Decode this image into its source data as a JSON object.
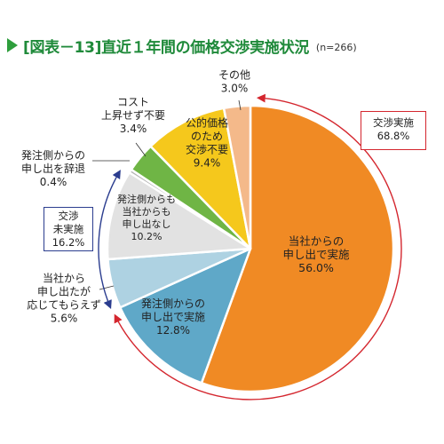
{
  "header": {
    "title": "[図表－13]直近１年間の価格交渉実施状況",
    "sample": "(n=266)"
  },
  "colors": {
    "accent_title": "#1f8a3a",
    "arrow_red": "#d4262e",
    "arrow_blue": "#2b3d8f"
  },
  "chart_data": {
    "type": "pie",
    "title": "[図表－13]直近１年間の価格交渉実施状況",
    "n": "(n=266)",
    "slices": [
      {
        "name": "当社からの申し出で実施",
        "lines": [
          "当社からの",
          "申し出で実施"
        ],
        "value": 56.0,
        "value_label": "56.0%",
        "color": "#f08a24"
      },
      {
        "name": "発注側からの申し出で実施",
        "lines": [
          "発注側からの",
          "申し出で実施"
        ],
        "value": 12.8,
        "value_label": "12.8%",
        "color": "#5fa8c8"
      },
      {
        "name": "当社から申し出たが応じてもらえず",
        "lines": [
          "当社から",
          "申し出たが",
          "応じてもらえず"
        ],
        "value": 5.6,
        "value_label": "5.6%",
        "color": "#aed2e2"
      },
      {
        "name": "発注側からも当社からも申し出なし",
        "lines": [
          "発注側からも",
          "当社からも",
          "申し出なし"
        ],
        "value": 10.2,
        "value_label": "10.2%",
        "color": "#e2e2e2"
      },
      {
        "name": "発注側からの申し出を辞退",
        "lines": [
          "発注側からの",
          "申し出を辞退"
        ],
        "value": 0.4,
        "value_label": "0.4%",
        "color": "#b4b4b4"
      },
      {
        "name": "コスト上昇せず不要",
        "lines": [
          "コスト",
          "上昇せず不要"
        ],
        "value": 3.4,
        "value_label": "3.4%",
        "color": "#6fb545"
      },
      {
        "name": "公的価格のため交渉不要",
        "lines": [
          "公的価格",
          "のため",
          "交渉不要"
        ],
        "value": 9.4,
        "value_label": "9.4%",
        "color": "#f5c81c"
      },
      {
        "name": "その他",
        "lines": [
          "その他"
        ],
        "value": 3.0,
        "value_label": "3.0%",
        "color": "#f4b98a"
      }
    ],
    "groups": [
      {
        "name": "交渉実施",
        "value": 68.8,
        "value_label": "68.8%"
      },
      {
        "name": "交渉未実施",
        "lines": [
          "交渉",
          "未実施"
        ],
        "value": 16.2,
        "value_label": "16.2%"
      }
    ]
  }
}
